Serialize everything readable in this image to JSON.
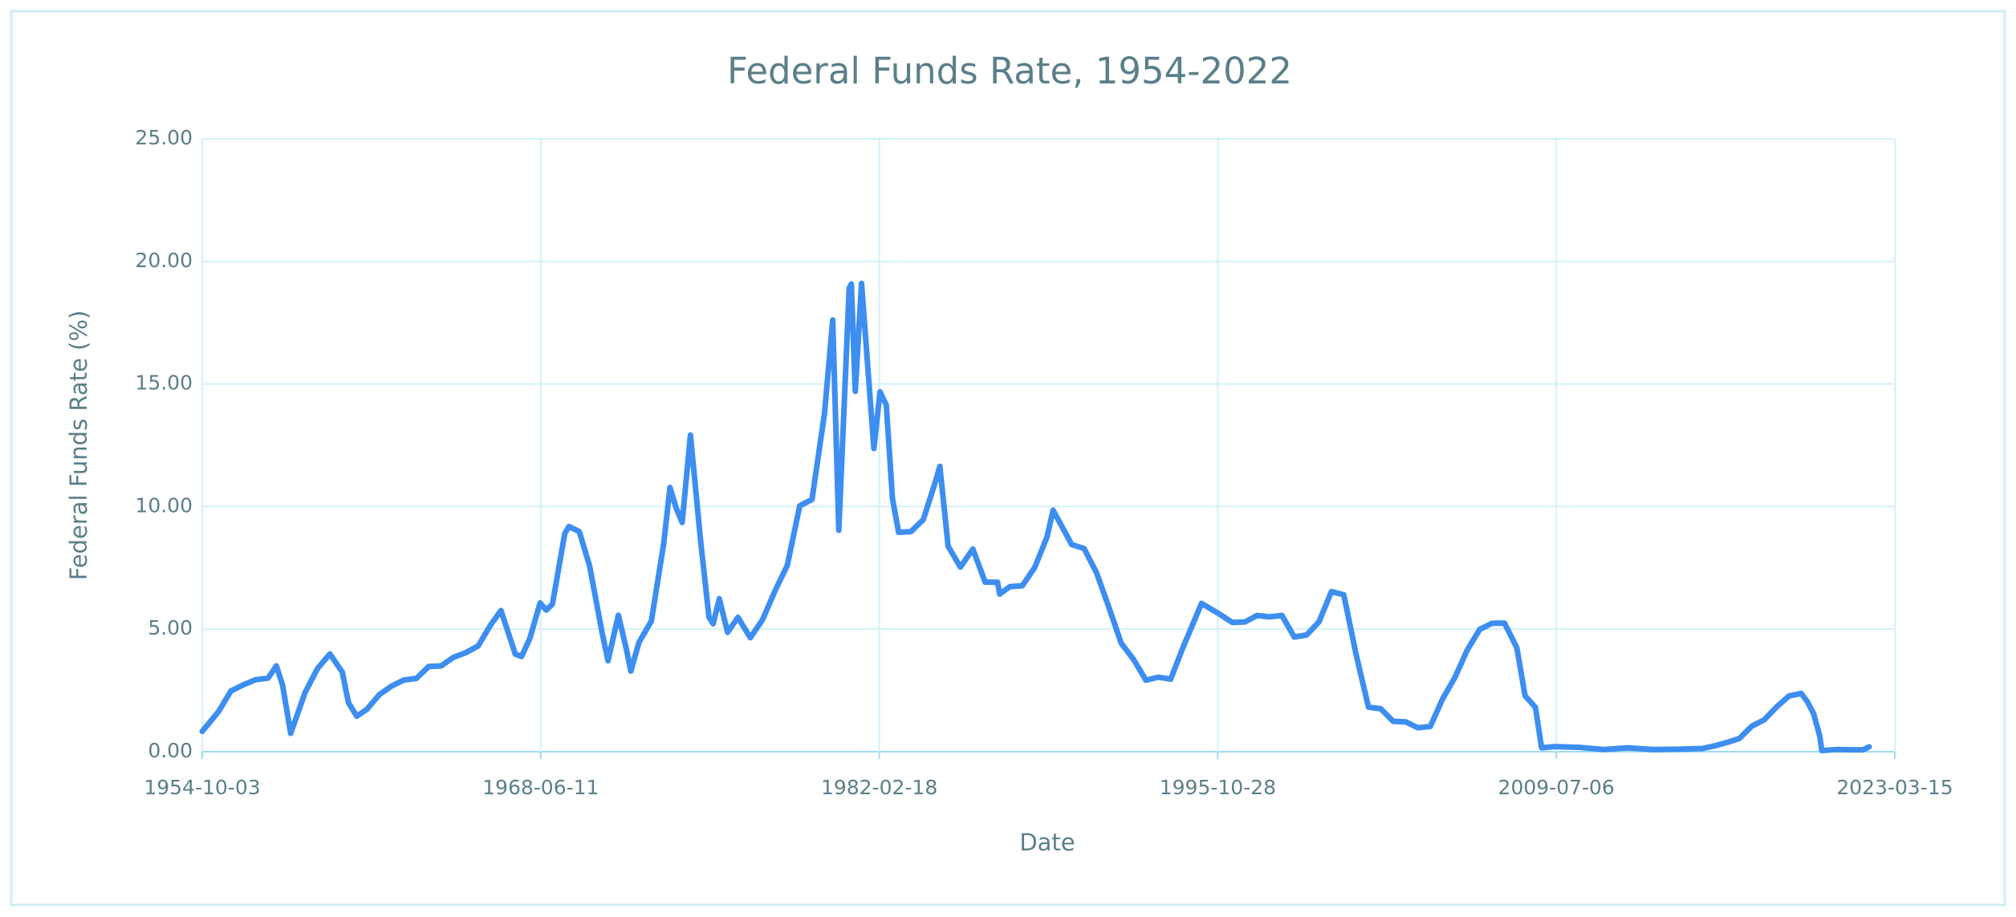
{
  "chart_data": {
    "type": "line",
    "title": "Federal Funds Rate, 1954-2022",
    "x_label": "Date",
    "y_label": "Federal Funds Rate (%)",
    "color": "#3d8ef0",
    "grid": true,
    "xlim": [
      "1954-10-03",
      "2023-03-15"
    ],
    "xticks": [
      "1954-10-03",
      "1968-06-11",
      "1982-02-18",
      "1995-10-28",
      "2009-07-06",
      "2023-03-15"
    ],
    "ylim": [
      0,
      25
    ],
    "yticks": [
      {
        "value": 0,
        "label": "0.00"
      },
      {
        "value": 5,
        "label": "5.00"
      },
      {
        "value": 10,
        "label": "10.00"
      },
      {
        "value": 15,
        "label": "15.00"
      },
      {
        "value": 20,
        "label": "20.00"
      },
      {
        "value": 25,
        "label": "25.00"
      }
    ],
    "x": [
      "1954-10-03",
      "1955-06-01",
      "1955-12-01",
      "1956-06-01",
      "1956-12-01",
      "1957-06-01",
      "1957-10-01",
      "1958-01-01",
      "1958-05-01",
      "1958-12-01",
      "1959-06-01",
      "1959-12-01",
      "1960-06-01",
      "1960-09-01",
      "1961-01-01",
      "1961-06-01",
      "1961-12-01",
      "1962-06-01",
      "1962-12-01",
      "1963-06-01",
      "1963-12-01",
      "1964-06-01",
      "1964-12-01",
      "1965-06-01",
      "1965-12-01",
      "1966-06-01",
      "1966-11-01",
      "1967-06-01",
      "1967-09-01",
      "1968-01-01",
      "1968-06-01",
      "1968-09-01",
      "1968-12-01",
      "1969-06-01",
      "1969-08-01",
      "1970-01-01",
      "1970-06-01",
      "1970-12-01",
      "1971-03-01",
      "1971-08-01",
      "1971-12-01",
      "1972-02-01",
      "1972-06-01",
      "1972-12-01",
      "1973-06-01",
      "1973-09-01",
      "1973-12-01",
      "1974-03-01",
      "1974-07-01",
      "1974-12-01",
      "1975-04-01",
      "1975-06-01",
      "1975-09-01",
      "1976-01-01",
      "1976-06-01",
      "1976-12-01",
      "1977-06-01",
      "1977-12-01",
      "1978-06-01",
      "1978-12-01",
      "1979-06-01",
      "1979-12-01",
      "1980-04-01",
      "1980-07-01",
      "1980-12-01",
      "1981-01-01",
      "1981-03-01",
      "1981-06-01",
      "1981-12-01",
      "1982-03-01",
      "1982-06-01",
      "1982-09-01",
      "1982-12-01",
      "1983-06-01",
      "1983-12-01",
      "1984-06-01",
      "1984-08-01",
      "1984-12-01",
      "1985-06-01",
      "1985-12-01",
      "1986-06-01",
      "1986-12-01",
      "1987-01-01",
      "1987-06-01",
      "1987-12-01",
      "1988-06-01",
      "1988-12-01",
      "1989-03-01",
      "1989-12-01",
      "1990-06-01",
      "1990-12-01",
      "1991-06-01",
      "1991-12-01",
      "1992-06-01",
      "1992-12-01",
      "1993-06-01",
      "1993-12-01",
      "1994-06-01",
      "1994-12-01",
      "1995-03-01",
      "1995-12-01",
      "1996-06-01",
      "1996-12-01",
      "1997-06-01",
      "1997-12-01",
      "1998-06-01",
      "1998-12-01",
      "1999-06-01",
      "1999-12-01",
      "2000-06-01",
      "2000-12-01",
      "2001-06-01",
      "2001-12-01",
      "2002-06-01",
      "2002-12-01",
      "2003-06-01",
      "2003-12-01",
      "2004-06-01",
      "2004-12-01",
      "2005-06-01",
      "2005-12-01",
      "2006-06-01",
      "2006-12-01",
      "2007-06-01",
      "2007-12-01",
      "2008-04-01",
      "2008-09-01",
      "2008-12-01",
      "2009-06-01",
      "2010-06-01",
      "2011-06-01",
      "2012-06-01",
      "2013-06-01",
      "2014-06-01",
      "2015-06-01",
      "2015-12-01",
      "2016-06-01",
      "2016-12-01",
      "2017-06-01",
      "2017-12-01",
      "2018-06-01",
      "2018-12-01",
      "2019-06-01",
      "2019-09-01",
      "2019-12-01",
      "2020-03-01",
      "2020-04-01",
      "2020-12-01",
      "2021-06-01",
      "2021-12-01",
      "2022-03-01"
    ],
    "values": [
      0.83,
      1.64,
      2.48,
      2.73,
      2.94,
      3.0,
      3.5,
      2.72,
      0.75,
      2.42,
      3.39,
      3.99,
      3.25,
      2.0,
      1.45,
      1.73,
      2.33,
      2.68,
      2.93,
      2.99,
      3.48,
      3.5,
      3.85,
      4.04,
      4.32,
      5.17,
      5.76,
      3.98,
      3.88,
      4.61,
      6.07,
      5.78,
      6.02,
      8.9,
      9.19,
      8.98,
      7.6,
      4.9,
      3.71,
      5.57,
      4.14,
      3.29,
      4.46,
      5.33,
      8.49,
      10.78,
      9.95,
      9.35,
      12.92,
      8.53,
      5.49,
      5.22,
      6.24,
      4.87,
      5.48,
      4.65,
      5.39,
      6.56,
      7.6,
      10.03,
      10.29,
      13.78,
      17.61,
      9.03,
      18.9,
      19.08,
      14.7,
      19.1,
      12.37,
      14.68,
      14.15,
      10.31,
      8.95,
      8.98,
      9.47,
      11.06,
      11.64,
      8.38,
      7.53,
      8.27,
      6.92,
      6.91,
      6.43,
      6.73,
      6.77,
      7.51,
      8.76,
      9.85,
      8.45,
      8.29,
      7.31,
      5.9,
      4.43,
      3.76,
      2.92,
      3.04,
      2.96,
      4.25,
      5.45,
      6.05,
      5.6,
      5.27,
      5.29,
      5.56,
      5.5,
      5.56,
      4.68,
      4.76,
      5.3,
      6.53,
      6.4,
      3.97,
      1.82,
      1.75,
      1.24,
      1.22,
      0.98,
      1.03,
      2.16,
      3.04,
      4.16,
      4.99,
      5.24,
      5.25,
      4.24,
      2.28,
      1.81,
      0.16,
      0.21,
      0.18,
      0.09,
      0.16,
      0.09,
      0.1,
      0.13,
      0.24,
      0.38,
      0.54,
      1.04,
      1.3,
      1.82,
      2.27,
      2.38,
      2.04,
      1.55,
      0.65,
      0.05,
      0.09,
      0.08,
      0.08,
      0.2
    ]
  }
}
